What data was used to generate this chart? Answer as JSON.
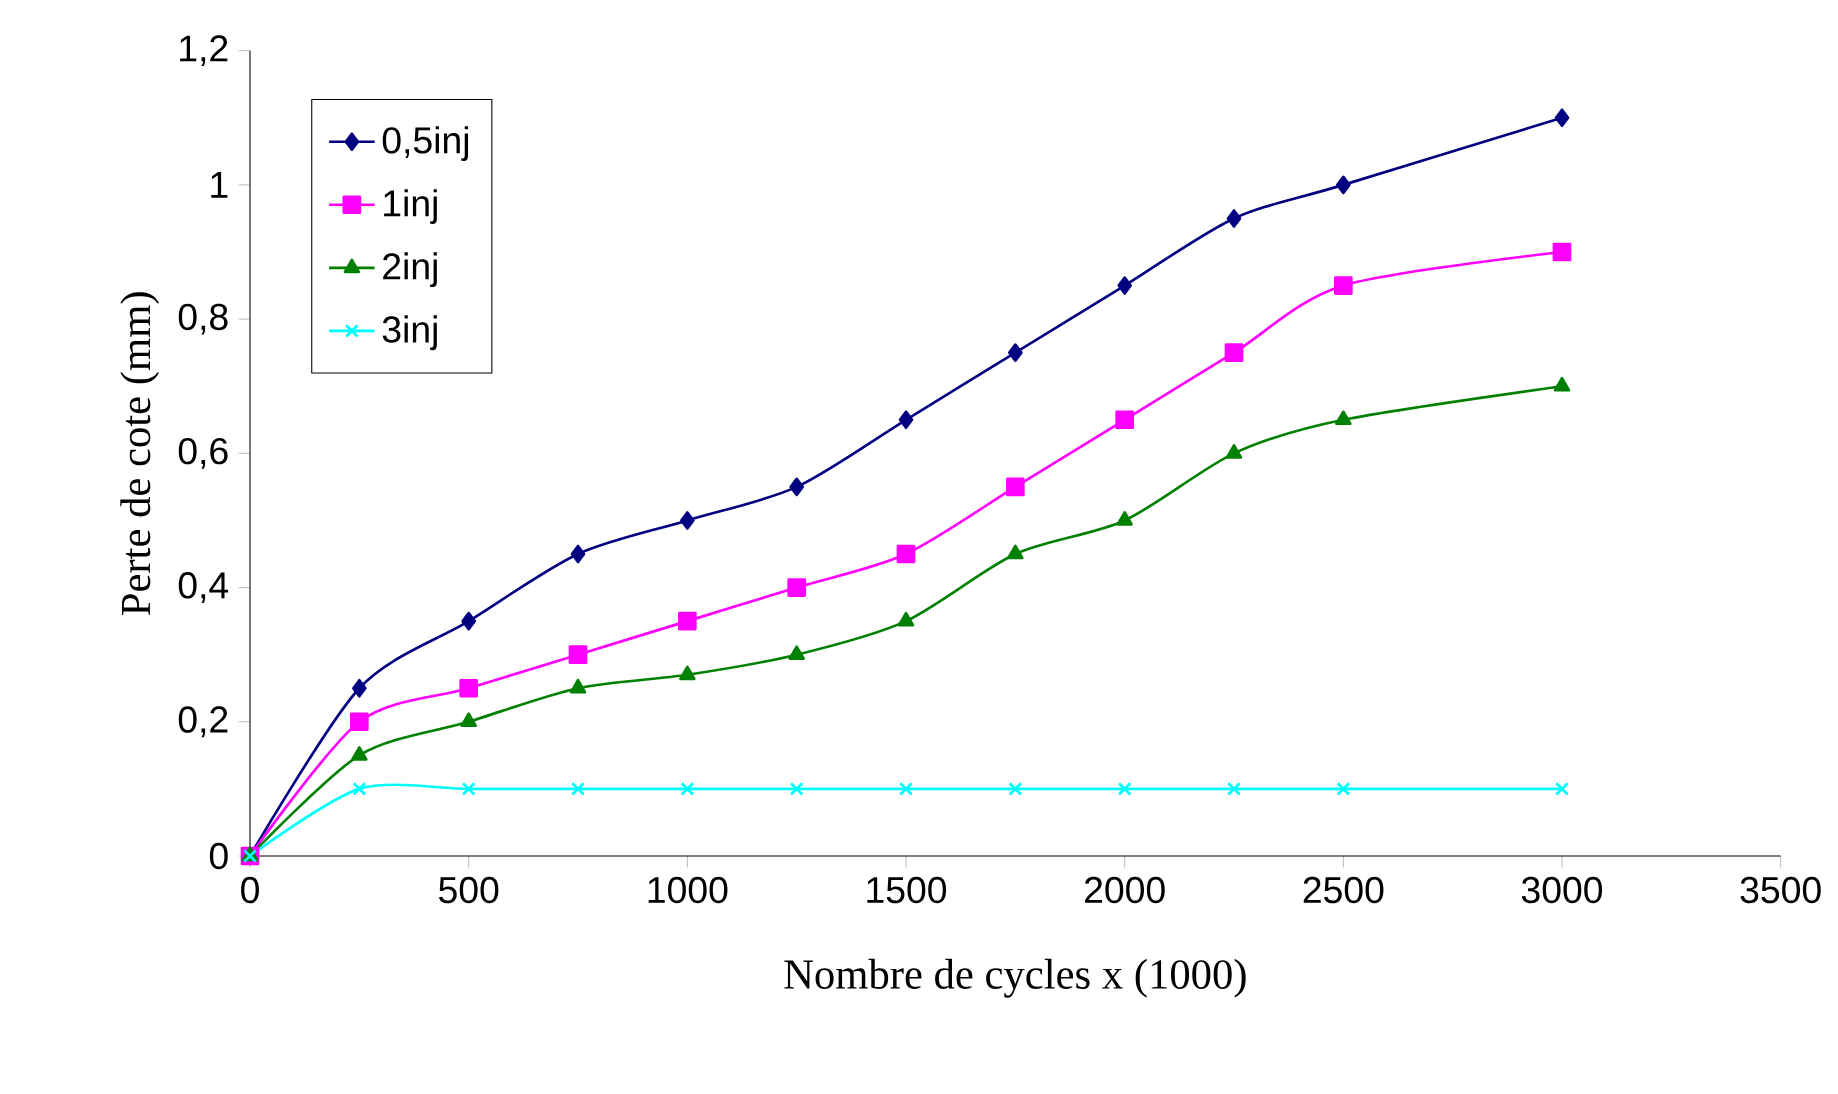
{
  "chart_data": {
    "type": "line",
    "xlabel": "Nombre de cycles x (1000)",
    "ylabel": "Perte de cote (mm)",
    "x": [
      0,
      250,
      500,
      750,
      1000,
      1250,
      1500,
      1750,
      2000,
      2250,
      2500,
      3000
    ],
    "series": [
      {
        "name": "0,5inj",
        "color": "#000080",
        "marker": "diamond",
        "values": [
          0,
          0.25,
          0.35,
          0.45,
          0.5,
          0.55,
          0.65,
          0.75,
          0.85,
          0.95,
          1.0,
          1.1
        ]
      },
      {
        "name": "1inj",
        "color": "#ff00ff",
        "marker": "square",
        "values": [
          0,
          0.2,
          0.25,
          0.3,
          0.35,
          0.4,
          0.45,
          0.55,
          0.65,
          0.75,
          0.85,
          0.9
        ]
      },
      {
        "name": "2inj",
        "color": "#008000",
        "marker": "triangle",
        "values": [
          0,
          0.15,
          0.2,
          0.25,
          0.27,
          0.3,
          0.35,
          0.45,
          0.5,
          0.6,
          0.65,
          0.7
        ]
      },
      {
        "name": "3inj",
        "color": "#00ffff",
        "marker": "cross",
        "values": [
          0,
          0.1,
          0.1,
          0.1,
          0.1,
          0.1,
          0.1,
          0.1,
          0.1,
          0.1,
          0.1,
          0.1
        ]
      }
    ],
    "xlim": [
      0,
      3500
    ],
    "ylim": [
      0,
      1.2
    ],
    "xticks": [
      0,
      500,
      1000,
      1500,
      2000,
      2500,
      3000,
      3500
    ],
    "yticks": [
      0,
      {
        "value": 0.2,
        "label": "0,2"
      },
      {
        "value": 0.4,
        "label": "0,4"
      },
      {
        "value": 0.6,
        "label": "0,6"
      },
      {
        "value": 0.8,
        "label": "0,8"
      },
      1,
      {
        "value": 1.2,
        "label": "1,2"
      }
    ],
    "grid": false,
    "legend": "top left"
  }
}
